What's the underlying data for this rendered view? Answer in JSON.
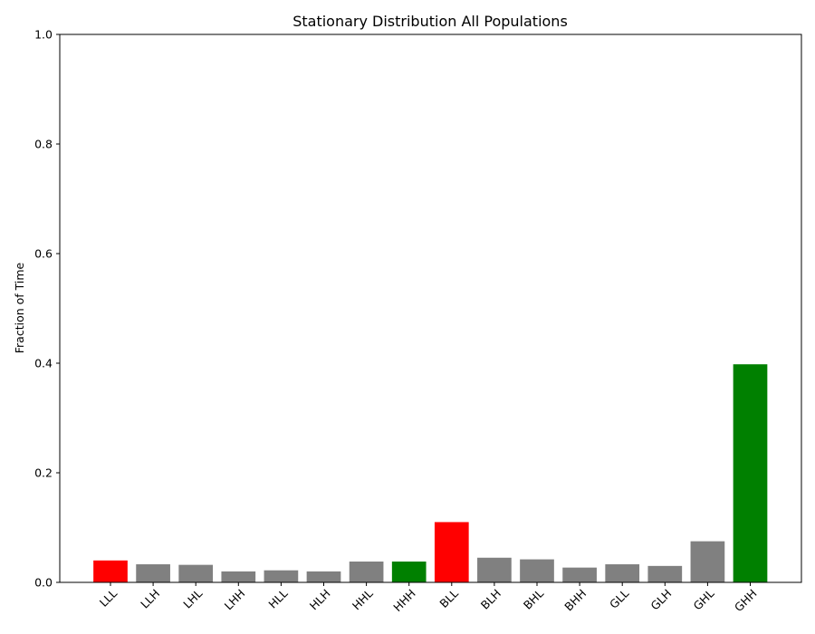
{
  "chart_data": {
    "type": "bar",
    "title": "Stationary Distribution All Populations",
    "xlabel": "",
    "ylabel": "Fraction of Time",
    "ylim": [
      0,
      1.0
    ],
    "yticks": [
      "0.0",
      "0.2",
      "0.4",
      "0.6",
      "0.8",
      "1.0"
    ],
    "grid": false,
    "categories": [
      "LLL",
      "LLH",
      "LHL",
      "LHH",
      "HLL",
      "HLH",
      "HHL",
      "HHH",
      "BLL",
      "BLH",
      "BHL",
      "BHH",
      "GLL",
      "GLH",
      "GHL",
      "GHH"
    ],
    "values": [
      0.04,
      0.033,
      0.032,
      0.02,
      0.022,
      0.02,
      0.038,
      0.038,
      0.11,
      0.045,
      0.042,
      0.027,
      0.033,
      0.03,
      0.075,
      0.398
    ],
    "colors": [
      "#ff0000",
      "#808080",
      "#808080",
      "#808080",
      "#808080",
      "#808080",
      "#808080",
      "#008000",
      "#ff0000",
      "#808080",
      "#808080",
      "#808080",
      "#808080",
      "#808080",
      "#808080",
      "#008000"
    ]
  }
}
